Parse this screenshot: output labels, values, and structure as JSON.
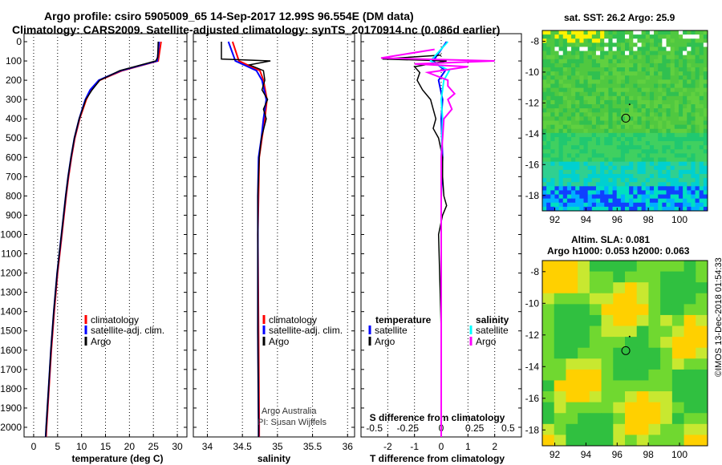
{
  "header": {
    "title_line1": "Argo profile: csiro 5905009_65 14-Sep-2017 12.99S 96.554E (DM data)",
    "title_line2": "Climatology: CARS2009. Satellite-adjusted climatology: synTS_20170914.nc (0.086d earlier)"
  },
  "maps": {
    "sst_title": "sat. SST: 26.2 Argo: 25.9",
    "sla_title_line1": "Altim. SLA: 0.081",
    "sla_title_line2": "Argo h1000: 0.053 h2000: 0.063",
    "x_ticks": [
      "92",
      "94",
      "96",
      "98",
      "100"
    ],
    "y_ticks": [
      "-8",
      "-10",
      "-12",
      "-14",
      "-16",
      "-18"
    ],
    "sst_y_ticks": [
      "-8",
      "-10",
      "-12",
      "-14",
      "-16",
      "-18"
    ],
    "sla_y_ticks": [
      "-8",
      "-10",
      "-12",
      "-14",
      "-16",
      "-18"
    ]
  },
  "footer": {
    "stamp": "©IMOS 13-Dec-2018 01:54:33"
  },
  "colors": {
    "climatology": "#ff0000",
    "satellite": "#0000ff",
    "argo": "#000000",
    "sat_cyan": "#00ffff",
    "argo_magenta": "#ff00ff"
  },
  "chart_data": [
    {
      "type": "line",
      "title": "",
      "xlabel": "temperature (deg C)",
      "ylabel": "",
      "xlim": [
        -2,
        32
      ],
      "ylim": [
        2050,
        0
      ],
      "x_ticks": [
        "0",
        "5",
        "10",
        "15",
        "20",
        "25",
        "30"
      ],
      "y_ticks": [
        "0",
        "100",
        "200",
        "300",
        "400",
        "500",
        "600",
        "700",
        "800",
        "900",
        "1000",
        "1100",
        "1200",
        "1300",
        "1400",
        "1500",
        "1600",
        "1700",
        "1800",
        "1900",
        "2000"
      ],
      "legend": [
        "climatology",
        "satellite-adj. clim.",
        "Argo"
      ],
      "legend_position": "lower-center",
      "series": [
        {
          "name": "climatology",
          "depth": [
            0,
            100,
            150,
            200,
            250,
            300,
            400,
            500,
            600,
            700,
            800,
            1000,
            1200,
            1400,
            1600,
            1800,
            2000,
            2050
          ],
          "values": [
            26.6,
            26.0,
            18.5,
            13.8,
            12.0,
            11.0,
            9.6,
            8.6,
            7.9,
            7.3,
            6.8,
            5.9,
            5.0,
            4.3,
            3.7,
            3.2,
            2.7,
            2.6
          ]
        },
        {
          "name": "satellite-adj. clim.",
          "depth": [
            0,
            100,
            150,
            200,
            250,
            300,
            400,
            500,
            600,
            700,
            800,
            1000,
            1200,
            1400,
            1600,
            1800,
            2000,
            2050
          ],
          "values": [
            26.2,
            25.8,
            18.2,
            13.6,
            11.8,
            10.8,
            9.5,
            8.5,
            7.8,
            7.2,
            6.7,
            5.8,
            4.9,
            4.2,
            3.6,
            3.1,
            2.6,
            2.5
          ]
        },
        {
          "name": "Argo",
          "depth": [
            0,
            80,
            100,
            150,
            200,
            250,
            300,
            400,
            500,
            600,
            700,
            800,
            1000,
            1200,
            1400,
            1600,
            1800,
            2000,
            2050
          ],
          "values": [
            26.0,
            25.9,
            25.5,
            18.0,
            13.8,
            12.2,
            10.9,
            9.5,
            8.5,
            7.8,
            7.2,
            6.7,
            5.8,
            4.9,
            4.2,
            3.6,
            3.1,
            2.6,
            2.5
          ]
        }
      ]
    },
    {
      "type": "line",
      "xlabel": "salinity",
      "xlim": [
        33.8,
        36.1
      ],
      "ylim": [
        2050,
        0
      ],
      "x_ticks": [
        "34",
        "34.5",
        "35",
        "35.5",
        "36"
      ],
      "legend": [
        "climatology",
        "satellite-adj. clim.",
        "Argo"
      ],
      "legend_position": "lower-right",
      "annotation_line1": "Argo Australia",
      "annotation_line2": "PI: Susan Wijffels",
      "series": [
        {
          "name": "climatology",
          "depth": [
            0,
            100,
            150,
            200,
            300,
            400,
            500,
            600,
            800,
            1000,
            1500,
            2000,
            2050
          ],
          "values": [
            34.36,
            34.45,
            34.75,
            34.8,
            34.85,
            34.82,
            34.78,
            34.74,
            34.73,
            34.72,
            34.73,
            34.74,
            34.74
          ]
        },
        {
          "name": "satellite-adj. clim.",
          "depth": [
            0,
            100,
            150,
            200,
            300,
            400,
            500,
            600,
            800,
            1000,
            1500,
            2000,
            2050
          ],
          "values": [
            34.3,
            34.4,
            34.7,
            34.78,
            34.84,
            34.8,
            34.77,
            34.73,
            34.72,
            34.72,
            34.72,
            34.73,
            34.73
          ]
        },
        {
          "name": "Argo",
          "depth": [
            0,
            90,
            100,
            120,
            150,
            200,
            250,
            300,
            350,
            400,
            500,
            600,
            800,
            1000,
            1500,
            2000,
            2050
          ],
          "values": [
            34.2,
            34.2,
            34.9,
            34.6,
            34.8,
            34.82,
            34.78,
            34.86,
            34.8,
            34.84,
            34.77,
            34.74,
            34.72,
            34.72,
            34.72,
            34.73,
            34.73
          ]
        }
      ]
    },
    {
      "type": "line",
      "xlabel": "T difference from climatology",
      "secondary_xlabel": "S difference from climatology",
      "xlim": [
        -3,
        3
      ],
      "ylim": [
        2050,
        0
      ],
      "x_ticks": [
        "-2",
        "-1",
        "0",
        "1",
        "2"
      ],
      "s_ticks": [
        "-0.5",
        "-0.25",
        "0",
        "0.25",
        "0.5"
      ],
      "legend_left_title": "temperature",
      "legend_right_title": "salinity",
      "legend_left": [
        "satellite",
        "Argo"
      ],
      "legend_right": [
        "satellite",
        "Argo"
      ],
      "series": [
        {
          "name": "T satellite",
          "depth": [
            0,
            100,
            150,
            200,
            300,
            400,
            600,
            800,
            1000,
            1500,
            2000,
            2050
          ],
          "values": [
            0.2,
            -0.3,
            0.15,
            -0.1,
            0.05,
            0.0,
            0.05,
            0.0,
            0.0,
            0.0,
            0.0,
            0.0
          ]
        },
        {
          "name": "T Argo",
          "depth": [
            70,
            90,
            100,
            130,
            160,
            200,
            250,
            300,
            350,
            400,
            450,
            500,
            600,
            700,
            800,
            850,
            900,
            1000,
            1500,
            2000,
            2050
          ],
          "values": [
            0.0,
            -2.2,
            0.2,
            -1.0,
            -0.8,
            -0.9,
            -0.7,
            -0.4,
            -0.3,
            -0.2,
            -0.3,
            -0.1,
            0.05,
            0.05,
            0.1,
            0.2,
            0.05,
            -0.1,
            0.0,
            0.0,
            0.0
          ]
        },
        {
          "name": "S satellite",
          "depth": [
            0,
            100,
            150,
            200,
            300,
            400,
            600,
            800,
            1000,
            1500,
            2000,
            2050
          ],
          "values": [
            0.05,
            -0.08,
            0.06,
            0.02,
            0.0,
            0.01,
            0.0,
            0.0,
            0.0,
            0.0,
            0.0,
            0.0
          ]
        },
        {
          "name": "S Argo",
          "depth": [
            40,
            85,
            100,
            115,
            130,
            160,
            200,
            230,
            270,
            300,
            350,
            400,
            500,
            600,
            800,
            1000,
            1500,
            2000,
            2050
          ],
          "values": [
            -0.05,
            -0.45,
            0.4,
            -0.2,
            0.2,
            -0.1,
            0.05,
            0.05,
            0.1,
            0.05,
            0.08,
            0.02,
            0.01,
            0.0,
            0.0,
            0.0,
            0.0,
            0.0,
            0.0
          ]
        }
      ]
    }
  ]
}
